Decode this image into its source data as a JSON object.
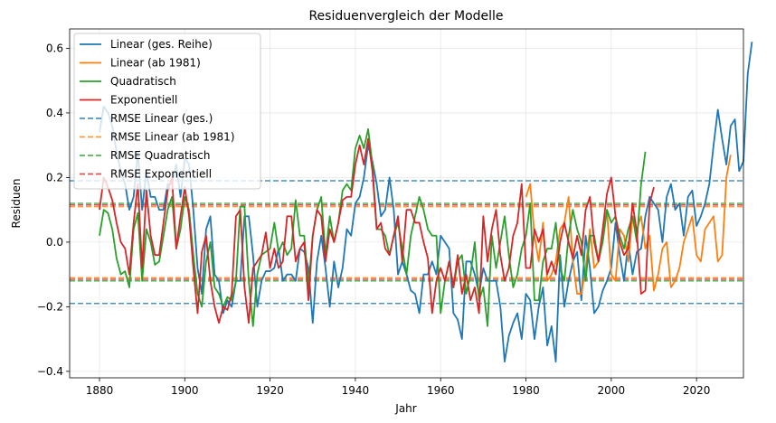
{
  "chart_data": {
    "type": "line",
    "title": "Residuenvergleich der Modelle",
    "xlabel": "Jahr",
    "ylabel": "Residuen",
    "xlim": [
      1873,
      2031
    ],
    "ylim": [
      -0.42,
      0.66
    ],
    "xticks": [
      1880,
      1900,
      1920,
      1940,
      1960,
      1980,
      2000,
      2020
    ],
    "yticks": [
      -0.4,
      -0.2,
      0.0,
      0.2,
      0.4,
      0.6
    ],
    "ytick_labels": [
      "−0.4",
      "−0.2",
      "0.0",
      "0.2",
      "0.4",
      "0.6"
    ],
    "grid": true,
    "legend_position": "top-left",
    "series": [
      {
        "name": "Linear (ges. Reihe)",
        "color": "#1f77b4",
        "start_year": 1880,
        "values": [
          0.34,
          0.42,
          0.4,
          0.36,
          0.28,
          0.22,
          0.18,
          0.1,
          0.14,
          0.28,
          0.1,
          0.22,
          0.14,
          0.14,
          0.1,
          0.1,
          0.18,
          0.18,
          0.24,
          0.14,
          0.26,
          0.24,
          0.1,
          -0.08,
          -0.16,
          0.04,
          0.08,
          -0.1,
          -0.12,
          -0.22,
          -0.18,
          -0.2,
          -0.12,
          -0.12,
          0.08,
          0.08,
          -0.04,
          -0.2,
          -0.12,
          -0.09,
          -0.09,
          -0.08,
          -0.02,
          -0.12,
          -0.1,
          -0.1,
          -0.12,
          -0.02,
          -0.03,
          -0.08,
          -0.25,
          -0.06,
          0.02,
          -0.08,
          -0.2,
          -0.06,
          -0.14,
          -0.08,
          0.04,
          0.02,
          0.12,
          0.14,
          0.2,
          0.3,
          0.25,
          0.18,
          0.08,
          0.1,
          0.2,
          0.1,
          -0.1,
          -0.06,
          -0.1,
          -0.15,
          -0.16,
          -0.22,
          -0.1,
          -0.1,
          -0.06,
          -0.1,
          0.02,
          0.0,
          -0.02,
          -0.22,
          -0.24,
          -0.3,
          -0.06,
          -0.06,
          -0.1,
          -0.16,
          -0.08,
          -0.12,
          -0.12,
          -0.12,
          -0.2,
          -0.37,
          -0.29,
          -0.25,
          -0.22,
          -0.3,
          -0.16,
          -0.18,
          -0.3,
          -0.2,
          -0.14,
          -0.32,
          -0.26,
          -0.37,
          -0.04,
          -0.2,
          -0.12,
          -0.06,
          -0.03,
          -0.18,
          0.02,
          -0.08,
          -0.22,
          -0.2,
          -0.15,
          -0.12,
          -0.08,
          0.06,
          -0.04,
          -0.12,
          0.0,
          -0.1,
          -0.03,
          -0.02,
          0.08,
          0.14,
          0.12,
          0.1,
          0.0,
          0.14,
          0.18,
          0.1,
          0.12,
          0.02,
          0.14,
          0.16,
          0.05,
          0.08,
          0.12,
          0.18,
          0.3,
          0.41,
          0.32,
          0.24,
          0.36,
          0.38,
          0.22,
          0.25,
          0.52,
          0.62
        ]
      },
      {
        "name": "Linear (ab 1981)",
        "color": "#ff7f0e",
        "start_year": 1980,
        "values": [
          0.14,
          0.18,
          0.02,
          -0.06,
          0.06,
          -0.12,
          -0.1,
          -0.06,
          0.04,
          0.06,
          0.14,
          -0.06,
          -0.16,
          -0.16,
          -0.08,
          0.04,
          -0.08,
          -0.06,
          0.02,
          0.1,
          -0.1,
          -0.12,
          0.04,
          0.02,
          -0.06,
          0.08,
          0.04,
          0.08,
          -0.02,
          0.02,
          -0.15,
          -0.1,
          -0.02,
          0.0,
          -0.14,
          -0.12,
          -0.08,
          0.0,
          0.04,
          0.08,
          -0.04,
          -0.06,
          0.04,
          0.06,
          0.08,
          -0.06,
          -0.04,
          0.2,
          0.27
        ]
      },
      {
        "name": "Quadratisch",
        "color": "#2ca02c",
        "start_year": 1880,
        "values": [
          0.02,
          0.1,
          0.09,
          0.04,
          -0.05,
          -0.1,
          -0.09,
          -0.14,
          0.04,
          0.09,
          -0.12,
          0.04,
          0.0,
          -0.07,
          -0.06,
          0.02,
          0.1,
          0.14,
          -0.02,
          0.04,
          0.14,
          0.1,
          -0.04,
          -0.16,
          -0.2,
          -0.06,
          0.0,
          -0.14,
          -0.16,
          -0.2,
          -0.17,
          -0.18,
          -0.12,
          0.11,
          0.11,
          -0.12,
          -0.26,
          -0.1,
          -0.04,
          -0.03,
          -0.02,
          0.06,
          -0.03,
          0.0,
          -0.04,
          -0.02,
          0.13,
          0.02,
          0.02,
          -0.14,
          0.02,
          0.1,
          0.14,
          -0.04,
          0.08,
          0.0,
          0.06,
          0.16,
          0.18,
          0.16,
          0.29,
          0.33,
          0.29,
          0.35,
          0.24,
          0.04,
          0.04,
          0.02,
          -0.04,
          0.02,
          0.06,
          -0.02,
          -0.1,
          0.02,
          0.08,
          0.14,
          0.1,
          0.04,
          0.02,
          0.02,
          -0.22,
          -0.12,
          -0.06,
          -0.14,
          -0.06,
          -0.04,
          -0.16,
          -0.1,
          0.0,
          -0.18,
          -0.14,
          -0.26,
          0.02,
          -0.08,
          0.0,
          0.08,
          -0.04,
          -0.14,
          -0.1,
          -0.02,
          0.02,
          0.12,
          -0.18,
          -0.18,
          -0.06,
          -0.02,
          -0.02,
          0.06,
          -0.08,
          -0.12,
          0.02,
          0.1,
          0.04,
          0.0,
          -0.12,
          0.02,
          0.02,
          -0.06,
          0.0,
          0.1,
          0.06,
          0.08,
          0.02,
          -0.02,
          0.04,
          0.08,
          0.0,
          0.18,
          0.28
        ]
      },
      {
        "name": "Exponentiell",
        "color": "#d62728",
        "start_year": 1880,
        "values": [
          0.1,
          0.2,
          0.17,
          0.13,
          0.06,
          0.0,
          -0.02,
          -0.1,
          0.06,
          0.18,
          -0.08,
          0.16,
          0.02,
          -0.04,
          -0.04,
          0.06,
          0.16,
          0.2,
          -0.02,
          0.08,
          0.17,
          0.08,
          -0.08,
          -0.22,
          -0.03,
          0.02,
          -0.12,
          -0.2,
          -0.25,
          -0.2,
          -0.21,
          -0.16,
          0.08,
          0.1,
          -0.14,
          -0.25,
          -0.08,
          -0.06,
          -0.04,
          0.03,
          -0.08,
          -0.02,
          -0.08,
          -0.06,
          0.08,
          0.08,
          -0.06,
          -0.02,
          0.0,
          -0.18,
          0.02,
          0.1,
          0.08,
          -0.06,
          0.04,
          0.0,
          0.06,
          0.13,
          0.14,
          0.14,
          0.24,
          0.3,
          0.24,
          0.32,
          0.22,
          0.04,
          0.06,
          -0.02,
          -0.04,
          0.02,
          0.08,
          -0.06,
          0.1,
          0.1,
          0.06,
          0.06,
          0.0,
          -0.05,
          -0.22,
          -0.12,
          -0.08,
          -0.12,
          -0.06,
          -0.14,
          -0.04,
          -0.16,
          -0.1,
          -0.18,
          -0.14,
          -0.22,
          0.08,
          -0.06,
          0.04,
          0.1,
          -0.04,
          -0.12,
          -0.08,
          0.02,
          0.06,
          0.18,
          -0.08,
          -0.08,
          0.04,
          0.0,
          0.04,
          -0.1,
          -0.06,
          -0.1,
          0.0,
          0.06,
          0.0,
          -0.05,
          0.02,
          -0.04,
          0.1,
          0.14,
          0.0,
          -0.06,
          0.04,
          0.15,
          0.2,
          0.08,
          0.0,
          -0.04,
          -0.02,
          0.12,
          0.03,
          -0.16,
          -0.15,
          0.12,
          0.17
        ]
      }
    ],
    "rmse_lines": [
      {
        "name": "RMSE Linear (ges.)",
        "color": "#1f77b4",
        "value": 0.19
      },
      {
        "name": "RMSE Linear (ab 1981)",
        "color": "#ff7f0e",
        "value": 0.11
      },
      {
        "name": "RMSE Quadratisch",
        "color": "#2ca02c",
        "value": 0.12
      },
      {
        "name": "RMSE Exponentiell",
        "color": "#d62728",
        "value": 0.115
      }
    ]
  }
}
